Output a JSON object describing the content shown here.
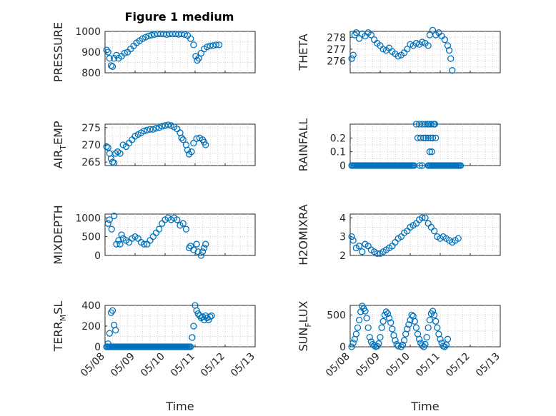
{
  "figure": {
    "title": "Figure 1 medium",
    "x_tick_labels": [
      "05/08",
      "05/09",
      "05/10",
      "05/11",
      "05/12",
      "05/13"
    ],
    "x_label": "Time"
  },
  "chart_data": [
    {
      "type": "scatter",
      "id": "pressure",
      "ylabel": "PRESSURE",
      "ylim": [
        800,
        1000
      ],
      "yticks": [
        800,
        900,
        1000
      ],
      "x_unit": "days since 05/08 00:00",
      "xlim": [
        0,
        5
      ],
      "grid": true,
      "marker": "circle",
      "color": "#0072BD",
      "points": [
        [
          0.05,
          910
        ],
        [
          0.1,
          900
        ],
        [
          0.15,
          870
        ],
        [
          0.2,
          835
        ],
        [
          0.25,
          830
        ],
        [
          0.3,
          870
        ],
        [
          0.38,
          885
        ],
        [
          0.45,
          870
        ],
        [
          0.55,
          880
        ],
        [
          0.65,
          895
        ],
        [
          0.75,
          900
        ],
        [
          0.85,
          915
        ],
        [
          0.95,
          930
        ],
        [
          1.05,
          945
        ],
        [
          1.15,
          955
        ],
        [
          1.25,
          965
        ],
        [
          1.35,
          972
        ],
        [
          1.45,
          978
        ],
        [
          1.55,
          982
        ],
        [
          1.65,
          985
        ],
        [
          1.75,
          988
        ],
        [
          1.85,
          988
        ],
        [
          1.95,
          988
        ],
        [
          2.05,
          985
        ],
        [
          2.15,
          988
        ],
        [
          2.25,
          988
        ],
        [
          2.35,
          988
        ],
        [
          2.45,
          986
        ],
        [
          2.55,
          988
        ],
        [
          2.65,
          985
        ],
        [
          2.75,
          980
        ],
        [
          2.85,
          965
        ],
        [
          2.95,
          935
        ],
        [
          3.02,
          880
        ],
        [
          3.07,
          860
        ],
        [
          3.12,
          870
        ],
        [
          3.2,
          895
        ],
        [
          3.3,
          915
        ],
        [
          3.4,
          925
        ],
        [
          3.5,
          930
        ],
        [
          3.6,
          932
        ],
        [
          3.7,
          935
        ],
        [
          3.8,
          935
        ]
      ]
    },
    {
      "type": "scatter",
      "id": "theta",
      "ylabel": "THETA",
      "ylim": [
        275,
        278.5
      ],
      "yticks": [
        276,
        277,
        278
      ],
      "x_unit": "days since 05/08 00:00",
      "xlim": [
        0,
        5
      ],
      "grid": true,
      "marker": "circle",
      "color": "#0072BD",
      "points": [
        [
          0.05,
          276.2
        ],
        [
          0.1,
          276.5
        ],
        [
          0.15,
          278.2
        ],
        [
          0.2,
          278.4
        ],
        [
          0.3,
          277.9
        ],
        [
          0.4,
          278.3
        ],
        [
          0.5,
          278.1
        ],
        [
          0.6,
          278.4
        ],
        [
          0.7,
          278.2
        ],
        [
          0.8,
          277.8
        ],
        [
          0.9,
          277.5
        ],
        [
          1.0,
          277.3
        ],
        [
          1.1,
          277.0
        ],
        [
          1.2,
          276.9
        ],
        [
          1.3,
          277.1
        ],
        [
          1.4,
          276.8
        ],
        [
          1.5,
          276.6
        ],
        [
          1.6,
          276.4
        ],
        [
          1.7,
          276.5
        ],
        [
          1.8,
          276.7
        ],
        [
          1.9,
          277.0
        ],
        [
          2.0,
          277.4
        ],
        [
          2.1,
          277.3
        ],
        [
          2.2,
          277.5
        ],
        [
          2.3,
          277.4
        ],
        [
          2.4,
          277.6
        ],
        [
          2.5,
          277.5
        ],
        [
          2.6,
          277.3
        ],
        [
          2.65,
          278.2
        ],
        [
          2.75,
          278.6
        ],
        [
          2.85,
          278.2
        ],
        [
          2.95,
          278.4
        ],
        [
          3.05,
          278.1
        ],
        [
          3.15,
          277.8
        ],
        [
          3.25,
          277.3
        ],
        [
          3.3,
          276.9
        ],
        [
          3.35,
          276.2
        ],
        [
          3.4,
          275.2
        ]
      ]
    },
    {
      "type": "scatter",
      "id": "air_temp",
      "ylabel": "AIR",
      "ylabel_sub": "T",
      "ylabel_after": "EMP",
      "ylim": [
        264,
        276
      ],
      "yticks": [
        265,
        270,
        275
      ],
      "x_unit": "days since 05/08 00:00",
      "xlim": [
        0,
        5
      ],
      "grid": true,
      "marker": "circle",
      "color": "#0072BD",
      "points": [
        [
          0.05,
          269.5
        ],
        [
          0.1,
          269.2
        ],
        [
          0.15,
          267.5
        ],
        [
          0.2,
          266.0
        ],
        [
          0.25,
          265.0
        ],
        [
          0.3,
          264.8
        ],
        [
          0.35,
          267.5
        ],
        [
          0.42,
          268.0
        ],
        [
          0.5,
          267.5
        ],
        [
          0.6,
          270.0
        ],
        [
          0.7,
          269.5
        ],
        [
          0.8,
          270.5
        ],
        [
          0.9,
          271.5
        ],
        [
          1.0,
          272.5
        ],
        [
          1.1,
          273.0
        ],
        [
          1.2,
          273.5
        ],
        [
          1.3,
          274.0
        ],
        [
          1.4,
          274.3
        ],
        [
          1.5,
          274.5
        ],
        [
          1.6,
          274.5
        ],
        [
          1.7,
          274.8
        ],
        [
          1.8,
          275.0
        ],
        [
          1.9,
          275.4
        ],
        [
          2.0,
          275.6
        ],
        [
          2.1,
          275.8
        ],
        [
          2.2,
          275.6
        ],
        [
          2.3,
          275.2
        ],
        [
          2.4,
          274.6
        ],
        [
          2.5,
          273.5
        ],
        [
          2.55,
          272.0
        ],
        [
          2.6,
          271.5
        ],
        [
          2.7,
          270.0
        ],
        [
          2.75,
          268.5
        ],
        [
          2.8,
          267.3
        ],
        [
          2.88,
          268.0
        ],
        [
          2.95,
          270.5
        ],
        [
          3.05,
          271.8
        ],
        [
          3.15,
          272.0
        ],
        [
          3.25,
          271.5
        ],
        [
          3.3,
          270.8
        ],
        [
          3.35,
          270.0
        ]
      ]
    },
    {
      "type": "scatter",
      "id": "rainfall",
      "ylabel": "RAINFALL",
      "ylim": [
        0,
        0.3
      ],
      "yticks": [
        0,
        0.1,
        0.2
      ],
      "x_unit": "days since 05/08 00:00",
      "xlim": [
        0,
        5
      ],
      "grid": true,
      "marker": "circle",
      "color": "#0072BD",
      "rain_zero_segments": [
        [
          0.05,
          2.15
        ],
        [
          2.6,
          3.7
        ]
      ],
      "points": [
        [
          2.2,
          0.3
        ],
        [
          2.3,
          0.3
        ],
        [
          2.4,
          0.3
        ],
        [
          2.5,
          0.3
        ],
        [
          2.25,
          0.2
        ],
        [
          2.35,
          0.2
        ],
        [
          2.45,
          0.2
        ],
        [
          2.52,
          0.2
        ],
        [
          2.32,
          0.0
        ],
        [
          2.4,
          0.0
        ],
        [
          2.58,
          0.3
        ],
        [
          2.62,
          0.3
        ],
        [
          2.7,
          0.3
        ],
        [
          2.78,
          0.3
        ],
        [
          2.6,
          0.2
        ],
        [
          2.68,
          0.2
        ],
        [
          2.75,
          0.2
        ],
        [
          2.85,
          0.2
        ],
        [
          2.65,
          0.1
        ],
        [
          2.72,
          0.1
        ],
        [
          2.82,
          0.3
        ]
      ]
    },
    {
      "type": "scatter",
      "id": "mixdepth",
      "ylabel": "MIXDEPTH",
      "ylim": [
        0,
        1100
      ],
      "yticks": [
        0,
        500,
        1000
      ],
      "x_unit": "days since 05/08 00:00",
      "xlim": [
        0,
        5
      ],
      "grid": true,
      "marker": "circle",
      "color": "#0072BD",
      "points": [
        [
          0.1,
          850
        ],
        [
          0.15,
          950
        ],
        [
          0.22,
          700
        ],
        [
          0.3,
          1050
        ],
        [
          0.38,
          300
        ],
        [
          0.45,
          400
        ],
        [
          0.5,
          300
        ],
        [
          0.55,
          550
        ],
        [
          0.6,
          450
        ],
        [
          0.7,
          400
        ],
        [
          0.8,
          350
        ],
        [
          0.9,
          450
        ],
        [
          1.0,
          500
        ],
        [
          1.1,
          450
        ],
        [
          1.2,
          350
        ],
        [
          1.3,
          300
        ],
        [
          1.4,
          300
        ],
        [
          1.5,
          400
        ],
        [
          1.6,
          500
        ],
        [
          1.7,
          600
        ],
        [
          1.8,
          700
        ],
        [
          1.9,
          850
        ],
        [
          2.0,
          950
        ],
        [
          2.1,
          1000
        ],
        [
          2.2,
          950
        ],
        [
          2.3,
          1000
        ],
        [
          2.4,
          950
        ],
        [
          2.5,
          800
        ],
        [
          2.6,
          850
        ],
        [
          2.7,
          700
        ],
        [
          2.8,
          200
        ],
        [
          2.85,
          250
        ],
        [
          2.95,
          150
        ],
        [
          3.05,
          300
        ],
        [
          3.1,
          100
        ],
        [
          3.2,
          0
        ],
        [
          3.25,
          100
        ],
        [
          3.3,
          200
        ],
        [
          3.35,
          300
        ]
      ]
    },
    {
      "type": "scatter",
      "id": "h2omixra",
      "ylabel": "H2OMIXRA",
      "ylim": [
        2,
        4.2
      ],
      "yticks": [
        2,
        3,
        4
      ],
      "x_unit": "days since 05/08 00:00",
      "xlim": [
        0,
        5
      ],
      "grid": true,
      "marker": "circle",
      "color": "#0072BD",
      "points": [
        [
          0.05,
          3.0
        ],
        [
          0.1,
          2.8
        ],
        [
          0.2,
          2.4
        ],
        [
          0.3,
          2.5
        ],
        [
          0.4,
          2.2
        ],
        [
          0.5,
          2.6
        ],
        [
          0.6,
          2.5
        ],
        [
          0.7,
          2.3
        ],
        [
          0.8,
          2.2
        ],
        [
          0.9,
          2.1
        ],
        [
          1.0,
          2.1
        ],
        [
          1.1,
          2.2
        ],
        [
          1.2,
          2.3
        ],
        [
          1.3,
          2.4
        ],
        [
          1.4,
          2.5
        ],
        [
          1.5,
          2.7
        ],
        [
          1.6,
          2.9
        ],
        [
          1.7,
          3.0
        ],
        [
          1.8,
          3.2
        ],
        [
          1.9,
          3.3
        ],
        [
          2.0,
          3.5
        ],
        [
          2.1,
          3.6
        ],
        [
          2.2,
          3.7
        ],
        [
          2.3,
          3.9
        ],
        [
          2.4,
          4.0
        ],
        [
          2.5,
          4.0
        ],
        [
          2.6,
          3.7
        ],
        [
          2.7,
          3.5
        ],
        [
          2.8,
          3.3
        ],
        [
          2.9,
          3.0
        ],
        [
          3.0,
          2.9
        ],
        [
          3.1,
          3.0
        ],
        [
          3.2,
          2.9
        ],
        [
          3.3,
          2.8
        ],
        [
          3.4,
          2.7
        ],
        [
          3.5,
          2.8
        ],
        [
          3.6,
          2.9
        ]
      ]
    },
    {
      "type": "scatter",
      "id": "terr_msl",
      "ylabel": "TERR",
      "ylabel_sub": "M",
      "ylabel_after": "SL",
      "ylim": [
        0,
        400
      ],
      "yticks": [
        0,
        200,
        400
      ],
      "x_unit": "days since 05/08 00:00",
      "xlim": [
        0,
        5
      ],
      "grid": true,
      "marker": "circle",
      "color": "#0072BD",
      "terr_zero_segment": [
        0.05,
        2.85
      ],
      "points": [
        [
          0.05,
          0
        ],
        [
          0.1,
          30
        ],
        [
          0.15,
          130
        ],
        [
          0.2,
          330
        ],
        [
          0.25,
          350
        ],
        [
          0.3,
          210
        ],
        [
          0.35,
          160
        ],
        [
          2.9,
          90
        ],
        [
          2.95,
          200
        ],
        [
          3.0,
          400
        ],
        [
          3.05,
          350
        ],
        [
          3.1,
          320
        ],
        [
          3.15,
          300
        ],
        [
          3.2,
          280
        ],
        [
          3.25,
          290
        ],
        [
          3.3,
          260
        ],
        [
          3.35,
          300
        ],
        [
          3.4,
          280
        ],
        [
          3.45,
          260
        ],
        [
          3.5,
          290
        ],
        [
          3.55,
          300
        ]
      ]
    },
    {
      "type": "scatter",
      "id": "sun_flux",
      "ylabel": "SUN",
      "ylabel_sub": "F",
      "ylabel_after": "LUX",
      "ylim": [
        0,
        650
      ],
      "yticks": [
        0,
        500
      ],
      "x_unit": "days since 05/08 00:00",
      "xlim": [
        0,
        5
      ],
      "grid": true,
      "marker": "circle",
      "color": "#0072BD",
      "points": [
        [
          0.05,
          0
        ],
        [
          0.1,
          60
        ],
        [
          0.15,
          120
        ],
        [
          0.2,
          200
        ],
        [
          0.25,
          300
        ],
        [
          0.3,
          420
        ],
        [
          0.35,
          550
        ],
        [
          0.4,
          640
        ],
        [
          0.45,
          600
        ],
        [
          0.5,
          560
        ],
        [
          0.55,
          450
        ],
        [
          0.6,
          300
        ],
        [
          0.65,
          150
        ],
        [
          0.7,
          80
        ],
        [
          0.75,
          40
        ],
        [
          0.8,
          20
        ],
        [
          0.85,
          0
        ],
        [
          0.9,
          10
        ],
        [
          0.95,
          50
        ],
        [
          1.0,
          150
        ],
        [
          1.05,
          300
        ],
        [
          1.1,
          400
        ],
        [
          1.15,
          500
        ],
        [
          1.2,
          550
        ],
        [
          1.25,
          520
        ],
        [
          1.3,
          450
        ],
        [
          1.35,
          380
        ],
        [
          1.4,
          280
        ],
        [
          1.45,
          180
        ],
        [
          1.5,
          100
        ],
        [
          1.55,
          40
        ],
        [
          1.6,
          10
        ],
        [
          1.7,
          0
        ],
        [
          1.75,
          30
        ],
        [
          1.8,
          100
        ],
        [
          1.85,
          200
        ],
        [
          1.9,
          280
        ],
        [
          1.95,
          350
        ],
        [
          2.0,
          420
        ],
        [
          2.05,
          500
        ],
        [
          2.1,
          480
        ],
        [
          2.15,
          400
        ],
        [
          2.2,
          300
        ],
        [
          2.25,
          200
        ],
        [
          2.3,
          120
        ],
        [
          2.35,
          60
        ],
        [
          2.4,
          20
        ],
        [
          2.45,
          0
        ],
        [
          2.5,
          40
        ],
        [
          2.55,
          150
        ],
        [
          2.6,
          300
        ],
        [
          2.65,
          420
        ],
        [
          2.7,
          520
        ],
        [
          2.75,
          560
        ],
        [
          2.8,
          500
        ],
        [
          2.85,
          400
        ],
        [
          2.9,
          300
        ],
        [
          2.95,
          200
        ],
        [
          3.0,
          120
        ],
        [
          3.05,
          60
        ],
        [
          3.1,
          10
        ],
        [
          3.15,
          0
        ],
        [
          3.2,
          30
        ],
        [
          3.25,
          120
        ]
      ]
    }
  ]
}
